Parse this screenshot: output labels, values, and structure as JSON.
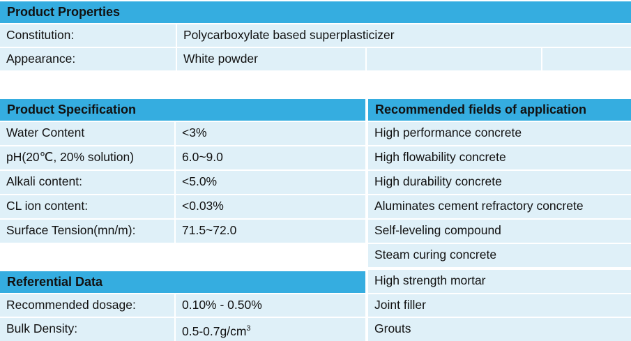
{
  "properties": {
    "header": "Product Properties",
    "rows": [
      {
        "label": "Constitution:",
        "value": "Polycarboxylate based superplasticizer"
      },
      {
        "label": "Appearance:",
        "value": "White powder"
      }
    ]
  },
  "specification": {
    "header": "Product Specification",
    "rows": [
      {
        "label": "Water Content",
        "value": "<3%"
      },
      {
        "label": "pH(20℃, 20% solution)",
        "value": "6.0~9.0"
      },
      {
        "label": "Alkali content:",
        "value": "<5.0%"
      },
      {
        "label": "CL ion content:",
        "value": "<0.03%"
      },
      {
        "label": "Surface Tension(mn/m):",
        "value": "71.5~72.0"
      }
    ]
  },
  "referential": {
    "header": "Referential Data",
    "rows": [
      {
        "label": "Recommended dosage:",
        "value": "0.10% - 0.50%"
      },
      {
        "label": "Bulk Density:",
        "value": "0.5-0.7g/cm",
        "sup": "3"
      }
    ]
  },
  "applications": {
    "header": "Recommended fields of application",
    "items": [
      "High performance concrete",
      "High flowability concrete",
      "High durability concrete",
      "Aluminates cement refractory concrete",
      "Self-leveling compound",
      "Steam curing concrete",
      "High strength mortar",
      "Joint filler",
      "Grouts"
    ]
  }
}
